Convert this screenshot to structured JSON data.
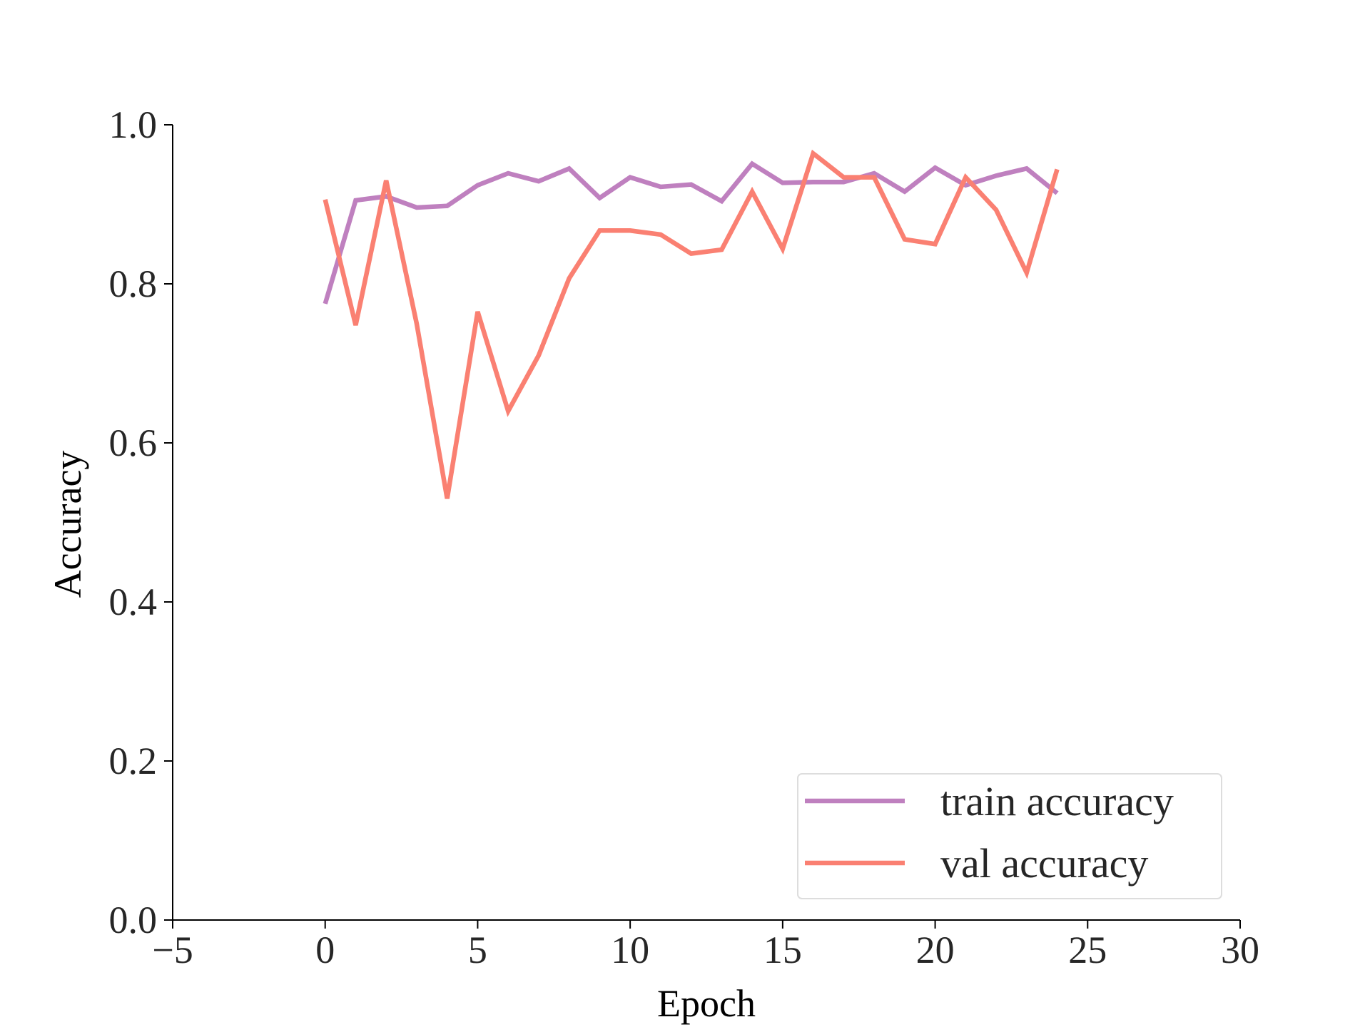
{
  "chart_data": {
    "type": "line",
    "title": "",
    "xlabel": "Epoch",
    "ylabel": "Accuracy",
    "xlim": [
      -5,
      30
    ],
    "ylim": [
      0.0,
      1.0
    ],
    "xticks": [
      -5,
      0,
      5,
      10,
      15,
      20,
      25,
      30
    ],
    "xtick_labels": [
      "−5",
      "0",
      "5",
      "10",
      "15",
      "20",
      "25",
      "30"
    ],
    "yticks": [
      0.0,
      0.2,
      0.4,
      0.6,
      0.8,
      1.0
    ],
    "ytick_labels": [
      "0.0",
      "0.2",
      "0.4",
      "0.6",
      "0.8",
      "1.0"
    ],
    "grid": false,
    "legend_position": "lower-right",
    "x": [
      0,
      1,
      2,
      3,
      4,
      5,
      6,
      7,
      8,
      9,
      10,
      11,
      12,
      13,
      14,
      15,
      16,
      17,
      18,
      19,
      20,
      21,
      22,
      23,
      24
    ],
    "series": [
      {
        "name": "train accuracy",
        "color": "#bf80bf",
        "values": [
          0.775,
          0.905,
          0.91,
          0.896,
          0.898,
          0.924,
          0.939,
          0.929,
          0.945,
          0.908,
          0.934,
          0.922,
          0.925,
          0.904,
          0.951,
          0.927,
          0.928,
          0.928,
          0.939,
          0.916,
          0.946,
          0.924,
          0.936,
          0.945,
          0.914
        ]
      },
      {
        "name": "val accuracy",
        "color": "#fa8072",
        "values": [
          0.906,
          0.748,
          0.93,
          0.75,
          0.53,
          0.765,
          0.64,
          0.71,
          0.807,
          0.867,
          0.867,
          0.862,
          0.838,
          0.843,
          0.916,
          0.844,
          0.964,
          0.934,
          0.934,
          0.856,
          0.85,
          0.934,
          0.893,
          0.814,
          0.944
        ]
      }
    ]
  }
}
